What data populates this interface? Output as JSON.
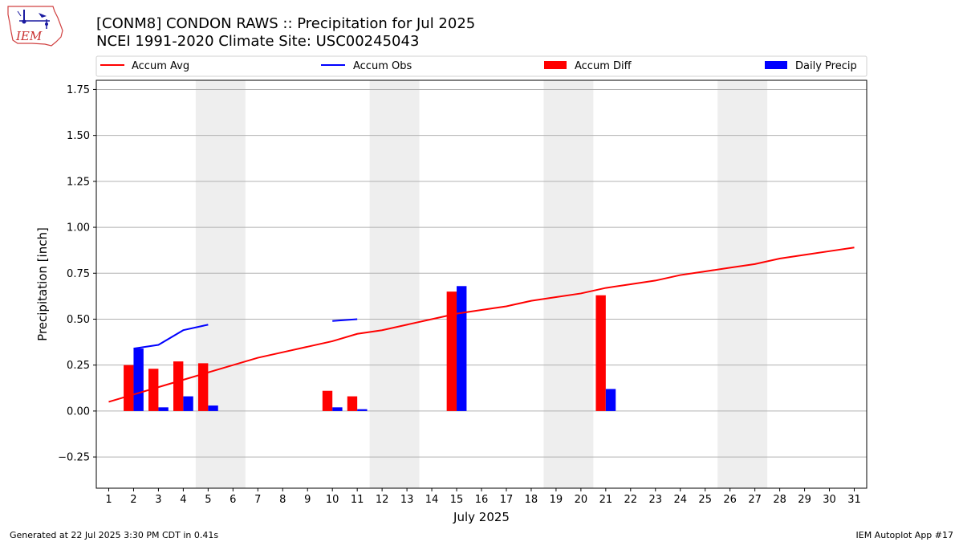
{
  "header": {
    "title_line1": "[CONM8] CONDON RAWS :: Precipitation for Jul 2025",
    "title_line2": "NCEI 1991-2020 Climate Site: USC00245043",
    "logo_text": "IEM"
  },
  "footer": {
    "left": "Generated at 22 Jul 2025 3:30 PM CDT in 0.41s",
    "right": "IEM Autoplot App #17"
  },
  "colors": {
    "accum_avg": "#ff0000",
    "accum_obs": "#0000ff",
    "accum_diff": "#ff0000",
    "daily_precip": "#0000ff",
    "weekend_shade": "#eeeeee",
    "grid": "#b0b0b0"
  },
  "chart_data": {
    "type": "bar",
    "xlabel": "July 2025",
    "ylabel": "Precipitation [inch]",
    "ylim": [
      -0.42,
      1.8
    ],
    "xlim": [
      0.5,
      31.5
    ],
    "grid": true,
    "legend_placement": "top (above plot)",
    "x": [
      1,
      2,
      3,
      4,
      5,
      6,
      7,
      8,
      9,
      10,
      11,
      12,
      13,
      14,
      15,
      16,
      17,
      18,
      19,
      20,
      21,
      22,
      23,
      24,
      25,
      26,
      27,
      28,
      29,
      30,
      31
    ],
    "x_tick_labels": [
      "1",
      "2",
      "3",
      "4",
      "5",
      "6",
      "7",
      "8",
      "9",
      "10",
      "11",
      "12",
      "13",
      "14",
      "15",
      "16",
      "17",
      "18",
      "19",
      "20",
      "21",
      "22",
      "23",
      "24",
      "25",
      "26",
      "27",
      "28",
      "29",
      "30",
      "31"
    ],
    "y_ticks": [
      -0.25,
      0.0,
      0.25,
      0.5,
      0.75,
      1.0,
      1.25,
      1.5,
      1.75
    ],
    "y_tick_labels": [
      "−0.25",
      "0.00",
      "0.25",
      "0.50",
      "0.75",
      "1.00",
      "1.25",
      "1.50",
      "1.75"
    ],
    "weekend_spans": [
      [
        4.5,
        6.5
      ],
      [
        11.5,
        13.5
      ],
      [
        18.5,
        20.5
      ],
      [
        25.5,
        27.5
      ]
    ],
    "series": [
      {
        "name": "Accum Avg",
        "kind": "line",
        "x": [
          1,
          2,
          3,
          4,
          5,
          6,
          7,
          8,
          9,
          10,
          11,
          12,
          13,
          14,
          15,
          16,
          17,
          18,
          19,
          20,
          21,
          22,
          23,
          24,
          25,
          26,
          27,
          28,
          29,
          30,
          31
        ],
        "values": [
          0.05,
          0.09,
          0.13,
          0.17,
          0.21,
          0.25,
          0.29,
          0.32,
          0.35,
          0.38,
          0.42,
          0.44,
          0.47,
          0.5,
          0.53,
          0.55,
          0.57,
          0.6,
          0.62,
          0.64,
          0.67,
          0.69,
          0.71,
          0.74,
          0.76,
          0.78,
          0.8,
          0.83,
          0.85,
          0.87,
          0.89
        ]
      },
      {
        "name": "Accum Obs",
        "kind": "line",
        "segments": [
          {
            "x": [
              2,
              3,
              4,
              5
            ],
            "values": [
              0.34,
              0.36,
              0.44,
              0.47
            ]
          },
          {
            "x": [
              10,
              11
            ],
            "values": [
              0.49,
              0.5
            ]
          }
        ]
      },
      {
        "name": "Accum Diff",
        "kind": "bar",
        "x": [
          2,
          3,
          4,
          5,
          10,
          11,
          15,
          21
        ],
        "values": [
          0.25,
          0.23,
          0.27,
          0.26,
          0.11,
          0.08,
          0.65,
          0.63
        ]
      },
      {
        "name": "Daily Precip",
        "kind": "bar",
        "x": [
          2,
          3,
          4,
          5,
          10,
          11,
          15,
          21
        ],
        "values": [
          0.34,
          0.02,
          0.08,
          0.03,
          0.02,
          0.01,
          0.68,
          0.12
        ]
      }
    ]
  }
}
